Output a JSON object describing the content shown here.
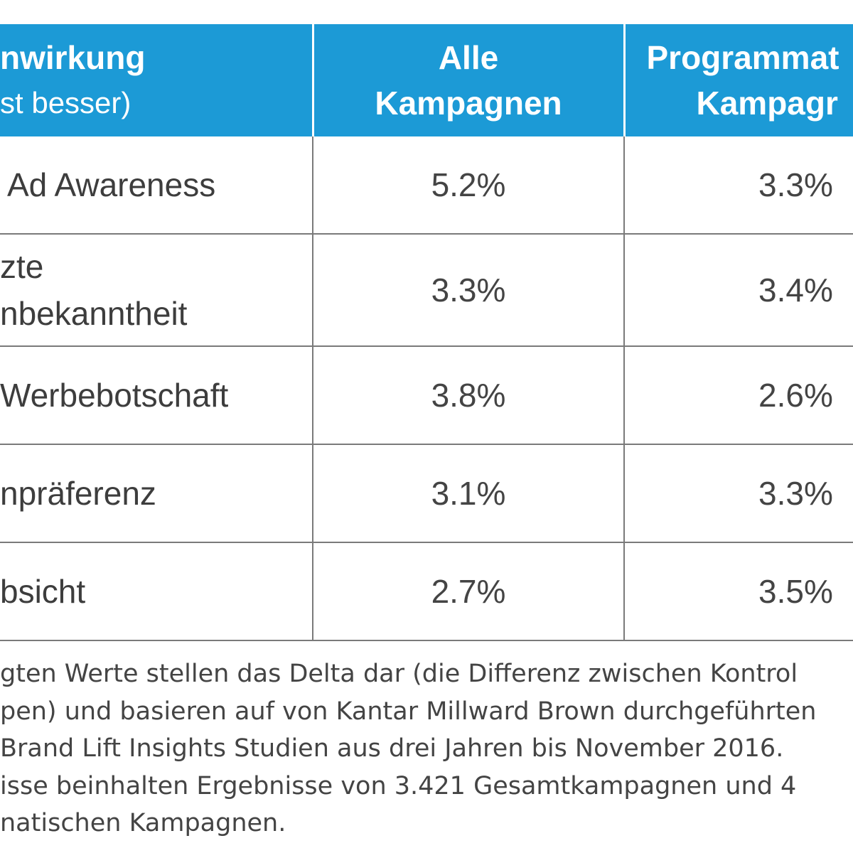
{
  "chart_data": {
    "type": "table",
    "columns": [
      {
        "line1": "nwirkung",
        "line2": "st besser)"
      },
      {
        "line1": "Alle",
        "line2": "Kampagnen"
      },
      {
        "line1": "Programmat",
        "line2": "Kampagr"
      }
    ],
    "rows": [
      {
        "metric": [
          "Ad Awareness"
        ],
        "alle": "5.2%",
        "prog": "3.3%"
      },
      {
        "metric": [
          "zte",
          "nbekanntheit"
        ],
        "alle": "3.3%",
        "prog": "3.4%"
      },
      {
        "metric": [
          "Werbebotschaft"
        ],
        "alle": "3.8%",
        "prog": "2.6%"
      },
      {
        "metric": [
          "npräferenz"
        ],
        "alle": "3.1%",
        "prog": "3.3%"
      },
      {
        "metric": [
          "bsicht"
        ],
        "alle": "2.7%",
        "prog": "3.5%"
      }
    ],
    "values": {
      "alle_kampagnen": [
        5.2,
        3.3,
        3.8,
        3.1,
        2.7
      ],
      "programmatic_kampagnen": [
        3.3,
        3.4,
        2.6,
        3.3,
        3.5
      ]
    }
  },
  "footnote": [
    "gten Werte stellen das Delta dar (die Differenz zwischen Kontrol",
    "pen) und basieren auf von Kantar Millward Brown durchgeführten",
    "Brand Lift Insights Studien aus drei Jahren bis November 2016.",
    "isse beinhalten Ergebnisse von 3.421 Gesamtkampagnen und 4",
    "natischen Kampagnen."
  ],
  "colors": {
    "header_bg": "#1c9ad6",
    "header_text": "#ffffff",
    "grid": "#7a7a7a",
    "text": "#3d3d3d"
  }
}
